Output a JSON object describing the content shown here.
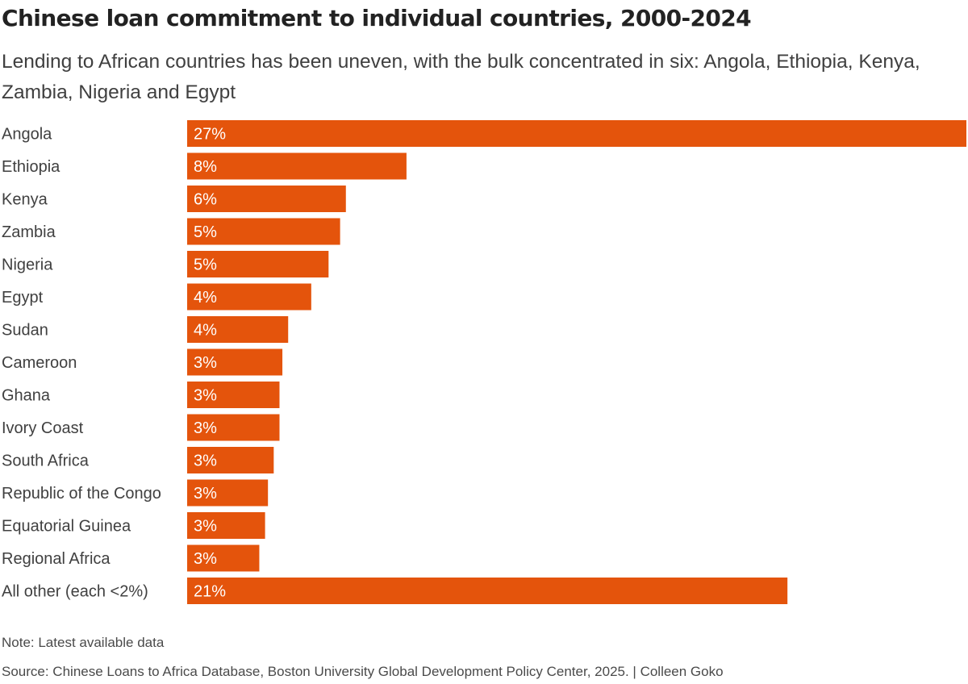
{
  "title": "Chinese loan commitment to individual countries, 2000-2024",
  "subtitle": "Lending to African countries has been uneven, with the bulk concentrated in six: Angola, Ethiopia, Kenya, Zambia, Nigeria and Egypt",
  "note": "Note: Latest available data",
  "source": "Source: Chinese Loans to Africa Database, Boston University Global Development Policy Center, 2025. | Colleen Goko",
  "colors": {
    "bar": "#e4540c"
  },
  "chart_data": {
    "type": "bar",
    "orientation": "horizontal",
    "categories": [
      "Angola",
      "Ethiopia",
      "Kenya",
      "Zambia",
      "Nigeria",
      "Egypt",
      "Sudan",
      "Cameroon",
      "Ghana",
      "Ivory Coast",
      "South Africa",
      "Republic of the Congo",
      "Equatorial Guinea",
      "Regional Africa",
      "All other (each <2%)"
    ],
    "values": [
      27,
      7.6,
      5.5,
      5.3,
      4.9,
      4.3,
      3.5,
      3.3,
      3.2,
      3.2,
      3.0,
      2.8,
      2.7,
      2.5,
      20.8
    ],
    "data_labels": [
      "27%",
      "8%",
      "6%",
      "5%",
      "5%",
      "4%",
      "4%",
      "3%",
      "3%",
      "3%",
      "3%",
      "3%",
      "3%",
      "3%",
      "21%"
    ],
    "xlim": [
      0,
      27
    ],
    "grid": false,
    "legend": "none"
  }
}
